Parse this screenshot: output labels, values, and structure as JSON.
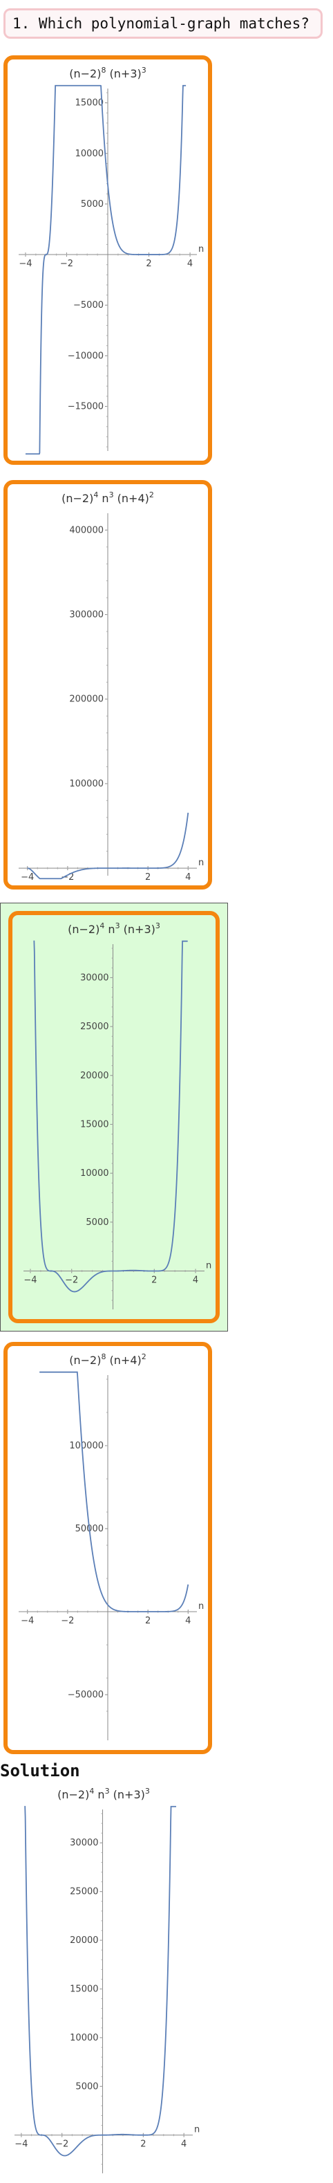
{
  "question": {
    "text": "1. Which polynomial‐graph matches?"
  },
  "choices": [
    {
      "title": [
        [
          "(n−2)",
          ""
        ],
        [
          "8",
          "sup"
        ],
        [
          " (n+3)",
          ""
        ],
        [
          "3",
          "sup"
        ]
      ],
      "selected": false,
      "chart_data": {
        "type": "line",
        "function": "(n-2)^8 (n+3)^3",
        "xlabel": "n",
        "xlim": [
          -4.2,
          4.2
        ],
        "ylim": [
          -19000,
          16000
        ],
        "x_ticks": [
          -4,
          -2,
          2,
          4
        ],
        "y_ticks": [
          -15000,
          -10000,
          -5000,
          5000,
          10000,
          15000
        ],
        "y_tick_labels": [
          "−15000",
          "−10000",
          "−5000",
          "5000",
          "10000",
          "15000"
        ],
        "x_tick_labels": [
          "−4",
          "−2",
          "2",
          "4"
        ],
        "plot_range": [
          -4,
          3.8
        ]
      }
    },
    {
      "title": [
        [
          "(n−2)",
          ""
        ],
        [
          "4",
          "sup"
        ],
        [
          " n",
          ""
        ],
        [
          "3",
          "sup"
        ],
        [
          " (n+4)",
          ""
        ],
        [
          "2",
          "sup"
        ]
      ],
      "selected": false,
      "chart_data": {
        "type": "line",
        "function": "(n-2)^4 n^3 (n+4)^2",
        "xlabel": "n",
        "xlim": [
          -4.3,
          4.3
        ],
        "ylim": [
          -4000,
          415000
        ],
        "x_ticks": [
          -4,
          -2,
          2,
          4
        ],
        "y_ticks": [
          100000,
          200000,
          300000,
          400000
        ],
        "y_tick_labels": [
          "100000",
          "200000",
          "300000",
          "400000"
        ],
        "x_tick_labels": [
          "−4",
          "−2",
          "2",
          "4"
        ],
        "plot_range": [
          -4,
          4
        ]
      }
    },
    {
      "title": [
        [
          "(n−2)",
          ""
        ],
        [
          "4",
          "sup"
        ],
        [
          " n",
          ""
        ],
        [
          "3",
          "sup"
        ],
        [
          " (n+3)",
          ""
        ],
        [
          "3",
          "sup"
        ]
      ],
      "selected": true,
      "chart_data": {
        "type": "line",
        "function": "(n-2)^4 n^3 (n+3)^3",
        "xlabel": "n",
        "xlim": [
          -4.2,
          4.3
        ],
        "ylim": [
          -3500,
          33000
        ],
        "x_ticks": [
          -4,
          -2,
          2,
          4
        ],
        "y_ticks": [
          5000,
          10000,
          15000,
          20000,
          25000,
          30000
        ],
        "y_tick_labels": [
          "5000",
          "10000",
          "15000",
          "20000",
          "25000",
          "30000"
        ],
        "x_tick_labels": [
          "−4",
          "−2",
          "2",
          "4"
        ],
        "plot_range": [
          -3.85,
          3.62
        ]
      }
    },
    {
      "title": [
        [
          "(n−2)",
          ""
        ],
        [
          "8",
          "sup"
        ],
        [
          " (n+4)",
          ""
        ],
        [
          "2",
          "sup"
        ]
      ],
      "selected": false,
      "chart_data": {
        "type": "line",
        "function": "(n-2)^8 (n+4)^2",
        "xlabel": "n",
        "xlim": [
          -4.3,
          4.3
        ],
        "ylim": [
          -75000,
          140000
        ],
        "x_ticks": [
          -4,
          -2,
          2,
          4
        ],
        "y_ticks": [
          -50000,
          50000,
          100000
        ],
        "y_tick_labels": [
          "−50000",
          "50000",
          "100000"
        ],
        "x_tick_labels": [
          "−4",
          "−2",
          "2",
          "4"
        ],
        "plot_range": [
          -3.4,
          4
        ]
      }
    }
  ],
  "solution": {
    "heading": "Solution",
    "title": [
      [
        "(n−2)",
        ""
      ],
      [
        "4",
        "sup"
      ],
      [
        " n",
        ""
      ],
      [
        "3",
        "sup"
      ],
      [
        " (n+3)",
        ""
      ],
      [
        "3",
        "sup"
      ]
    ],
    "chart_data": {
      "type": "line",
      "function": "(n-2)^4 n^3 (n+3)^3",
      "xlabel": "n",
      "xlim": [
        -4.2,
        4.3
      ],
      "ylim": [
        -3500,
        33000
      ],
      "x_ticks": [
        -4,
        -2,
        2,
        4
      ],
      "y_ticks": [
        5000,
        10000,
        15000,
        20000,
        25000,
        30000
      ],
      "y_tick_labels": [
        "5000",
        "10000",
        "15000",
        "20000",
        "25000",
        "30000"
      ],
      "x_tick_labels": [
        "−4",
        "−2",
        "2",
        "4"
      ],
      "plot_range": [
        -3.85,
        3.62
      ]
    }
  },
  "colors": {
    "border": "#f4860f",
    "selected_bg": "#dcfcd8",
    "curve": "#5b7fb7",
    "question_border": "#f4c7cc"
  }
}
